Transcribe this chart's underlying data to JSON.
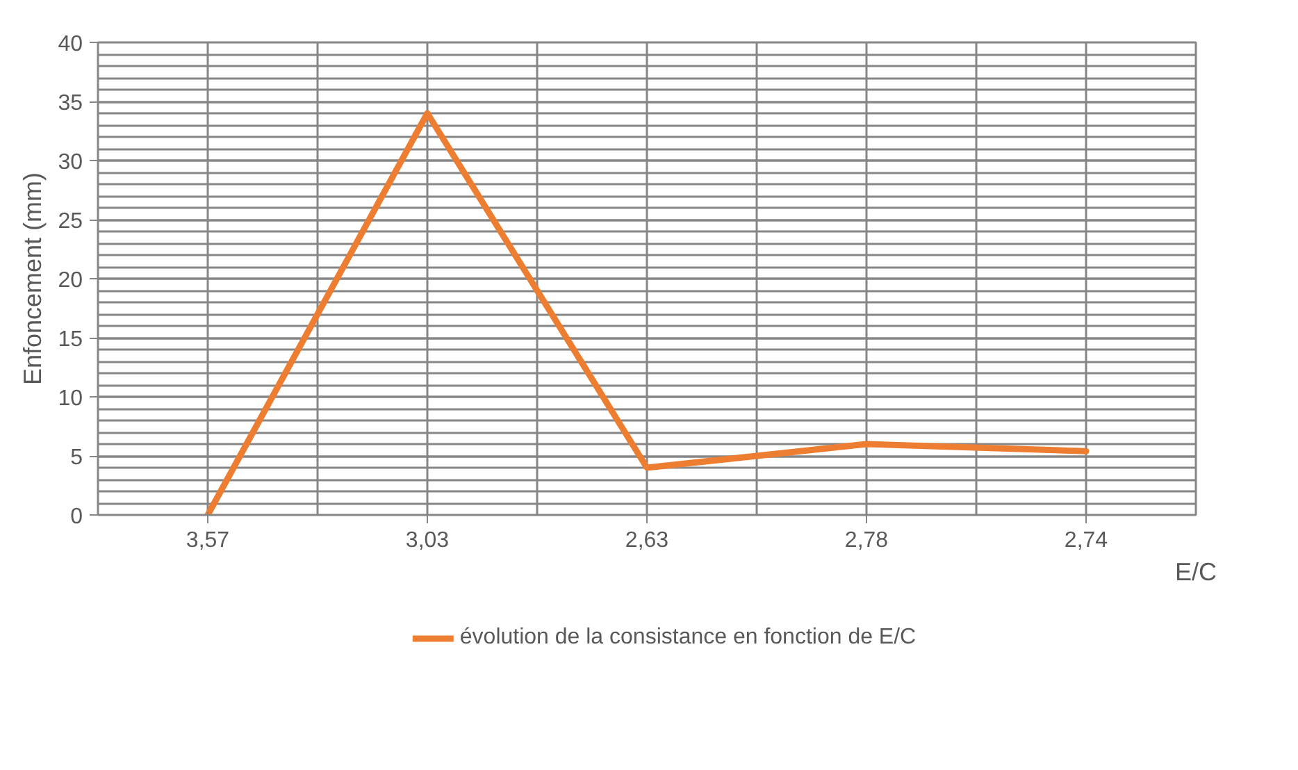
{
  "chart_data": {
    "type": "line",
    "xlabel": "E/C",
    "ylabel": "Enfoncement (mm)",
    "categories": [
      "3,57",
      "3,03",
      "2,63",
      "2,78",
      "2,74"
    ],
    "series": [
      {
        "name": "évolution de la consistance en fonction de E/C",
        "color": "#ed7d31",
        "values": [
          0,
          34,
          4,
          6,
          5.4
        ]
      }
    ],
    "ylim": [
      0,
      40
    ],
    "yticks": [
      0,
      5,
      10,
      15,
      20,
      25,
      30,
      35,
      40
    ],
    "grid": true,
    "legend": "bottom",
    "marker": "none",
    "line_style": "solid"
  }
}
